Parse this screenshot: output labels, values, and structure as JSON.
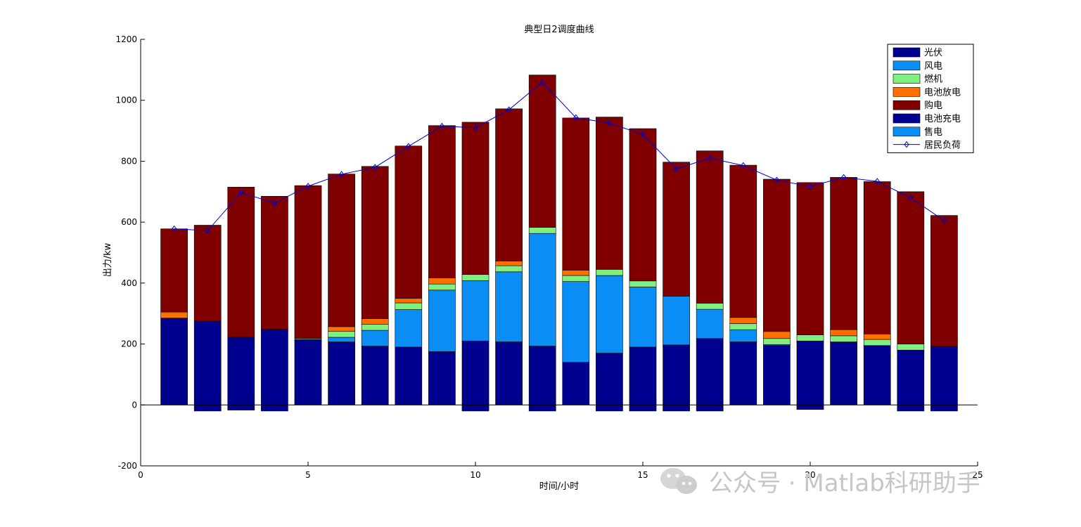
{
  "chart_data": {
    "type": "bar",
    "title": "典型日2调度曲线",
    "xlabel": "时间/小时",
    "ylabel": "出力/kw",
    "xlim": [
      0,
      25
    ],
    "ylim": [
      -200,
      1200
    ],
    "xticks": [
      0,
      5,
      10,
      15,
      20,
      25
    ],
    "yticks": [
      -200,
      0,
      200,
      400,
      600,
      800,
      1000,
      1200
    ],
    "grid": false,
    "legend_position": "top-right",
    "x": [
      1,
      2,
      3,
      4,
      5,
      6,
      7,
      8,
      9,
      10,
      11,
      12,
      13,
      14,
      15,
      16,
      17,
      18,
      19,
      20,
      21,
      22,
      23,
      24
    ],
    "stacked_positive": [
      {
        "name": "光伏",
        "color": "#00008f",
        "values": [
          285,
          275,
          222,
          248,
          215,
          207,
          193,
          190,
          175,
          210,
          207,
          193,
          140,
          170,
          190,
          197,
          218,
          207,
          195,
          210,
          207,
          195,
          180,
          192
        ]
      },
      {
        "name": "风电",
        "color": "#0a8ef5",
        "values": [
          0,
          0,
          0,
          0,
          0,
          15,
          52,
          123,
          202,
          198,
          230,
          370,
          265,
          255,
          197,
          160,
          96,
          40,
          3,
          0,
          0,
          0,
          0,
          0
        ]
      },
      {
        "name": "燃机",
        "color": "#80f080",
        "values": [
          0,
          0,
          0,
          0,
          3,
          20,
          20,
          22,
          20,
          20,
          20,
          20,
          20,
          20,
          20,
          0,
          20,
          20,
          20,
          20,
          20,
          20,
          20,
          0
        ]
      },
      {
        "name": "电池放电",
        "color": "#ff7000",
        "values": [
          20,
          0,
          0,
          0,
          0,
          15,
          18,
          15,
          20,
          0,
          15,
          0,
          17,
          0,
          0,
          0,
          0,
          20,
          23,
          0,
          20,
          18,
          0,
          0
        ]
      },
      {
        "name": "购电",
        "color": "#800000",
        "values": [
          273,
          315,
          493,
          437,
          502,
          501,
          500,
          500,
          500,
          500,
          500,
          500,
          500,
          500,
          500,
          440,
          500,
          500,
          500,
          500,
          500,
          500,
          500,
          430
        ]
      }
    ],
    "stacked_negative": [
      {
        "name": "电池充电",
        "color": "#00008f",
        "values": [
          0,
          -20,
          -17,
          -20,
          0,
          0,
          0,
          0,
          0,
          -20,
          0,
          -20,
          0,
          -20,
          -20,
          -20,
          -20,
          0,
          0,
          -15,
          0,
          0,
          -20,
          -20
        ]
      },
      {
        "name": "售电",
        "color": "#0a8ef5",
        "values": [
          0,
          0,
          0,
          0,
          0,
          0,
          0,
          0,
          0,
          0,
          0,
          0,
          0,
          0,
          0,
          0,
          0,
          0,
          0,
          0,
          0,
          0,
          0,
          0
        ]
      }
    ],
    "line": {
      "name": "居民负荷",
      "color": "#0000cc",
      "marker": "diamond",
      "values": [
        578,
        572,
        697,
        663,
        718,
        757,
        780,
        849,
        915,
        910,
        969,
        1060,
        943,
        925,
        888,
        775,
        810,
        786,
        738,
        717,
        747,
        734,
        680,
        605
      ]
    }
  },
  "watermark": {
    "text": "公众号 · Matlab科研助手",
    "icon": "wechat-icon"
  }
}
